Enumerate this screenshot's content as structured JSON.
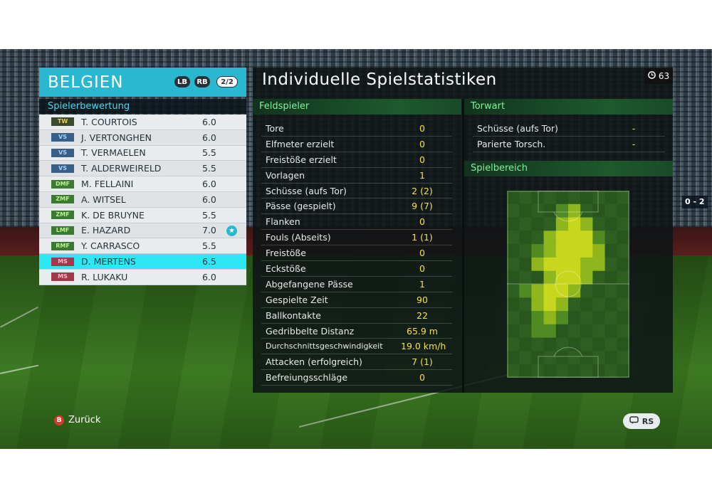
{
  "screen": {
    "title": "Individuelle Spielstatistiken",
    "timer": "63",
    "score_partial": "0 - 2"
  },
  "team": {
    "name": "BELGIEN",
    "lb": "LB",
    "rb": "RB",
    "page": "2/2",
    "ratings_title": "Spielerbewertung",
    "players": [
      {
        "pos": "TW",
        "name": "T. COURTOIS",
        "rating": "6.0",
        "group": "gk"
      },
      {
        "pos": "VS",
        "name": "J. VERTONGHEN",
        "rating": "6.0",
        "group": "df"
      },
      {
        "pos": "VS",
        "name": "T. VERMAELEN",
        "rating": "5.5",
        "group": "df"
      },
      {
        "pos": "VS",
        "name": "T. ALDERWEIRELD",
        "rating": "5.5",
        "group": "df"
      },
      {
        "pos": "DMF",
        "name": "M. FELLAINI",
        "rating": "6.0",
        "group": "mf"
      },
      {
        "pos": "ZMF",
        "name": "A. WITSEL",
        "rating": "6.0",
        "group": "mf"
      },
      {
        "pos": "ZMF",
        "name": "K. DE BRUYNE",
        "rating": "5.5",
        "group": "mf"
      },
      {
        "pos": "LMF",
        "name": "E. HAZARD",
        "rating": "7.0",
        "group": "mf",
        "star": true
      },
      {
        "pos": "RMF",
        "name": "Y. CARRASCO",
        "rating": "5.5",
        "group": "mf"
      },
      {
        "pos": "MS",
        "name": "D. MERTENS",
        "rating": "6.5",
        "group": "fw",
        "selected": true
      },
      {
        "pos": "MS",
        "name": "R. LUKAKU",
        "rating": "6.0",
        "group": "fw"
      }
    ]
  },
  "outfield": {
    "title": "Feldspieler",
    "stats": [
      {
        "label": "Tore",
        "value": "0"
      },
      {
        "label": "Elfmeter erzielt",
        "value": "0"
      },
      {
        "label": "Freistöße erzielt",
        "value": "0"
      },
      {
        "label": "Vorlagen",
        "value": "1"
      },
      {
        "label": "Schüsse (aufs Tor)",
        "value": "2 (2)"
      },
      {
        "label": "Pässe (gespielt)",
        "value": "9 (7)"
      },
      {
        "label": "Flanken",
        "value": "0"
      },
      {
        "label": "Fouls (Abseits)",
        "value": "1 (1)"
      },
      {
        "label": "Freistöße",
        "value": "0"
      },
      {
        "label": "Eckstöße",
        "value": "0"
      },
      {
        "label": "Abgefangene Pässe",
        "value": "1"
      },
      {
        "label": "Gespielte Zeit",
        "value": "90"
      },
      {
        "label": "Ballkontakte",
        "value": "22"
      },
      {
        "label": "Gedribbelte Distanz",
        "value": "65.9 m"
      },
      {
        "label": "Durchschnittsgeschwindigkeit",
        "value": "19.0 km/h"
      },
      {
        "label": "Attacken (erfolgreich)",
        "value": "7 (1)"
      },
      {
        "label": "Befreiungsschläge",
        "value": "0"
      }
    ]
  },
  "goalkeeper": {
    "title": "Torwart",
    "stats": [
      {
        "label": "Schüsse (aufs Tor)",
        "value": "-"
      },
      {
        "label": "Parierte Torsch.",
        "value": "-"
      }
    ]
  },
  "area": {
    "title": "Spielbereich"
  },
  "footer": {
    "back_key": "B",
    "back_label": "Zurück",
    "rs_label": "RS"
  },
  "colors": {
    "accent": "#29b8cf",
    "selected_row": "#2ee7f5",
    "stat_value": "#f2e14a",
    "section_text": "#7ff29a",
    "heat_high": "#c9d61e"
  }
}
